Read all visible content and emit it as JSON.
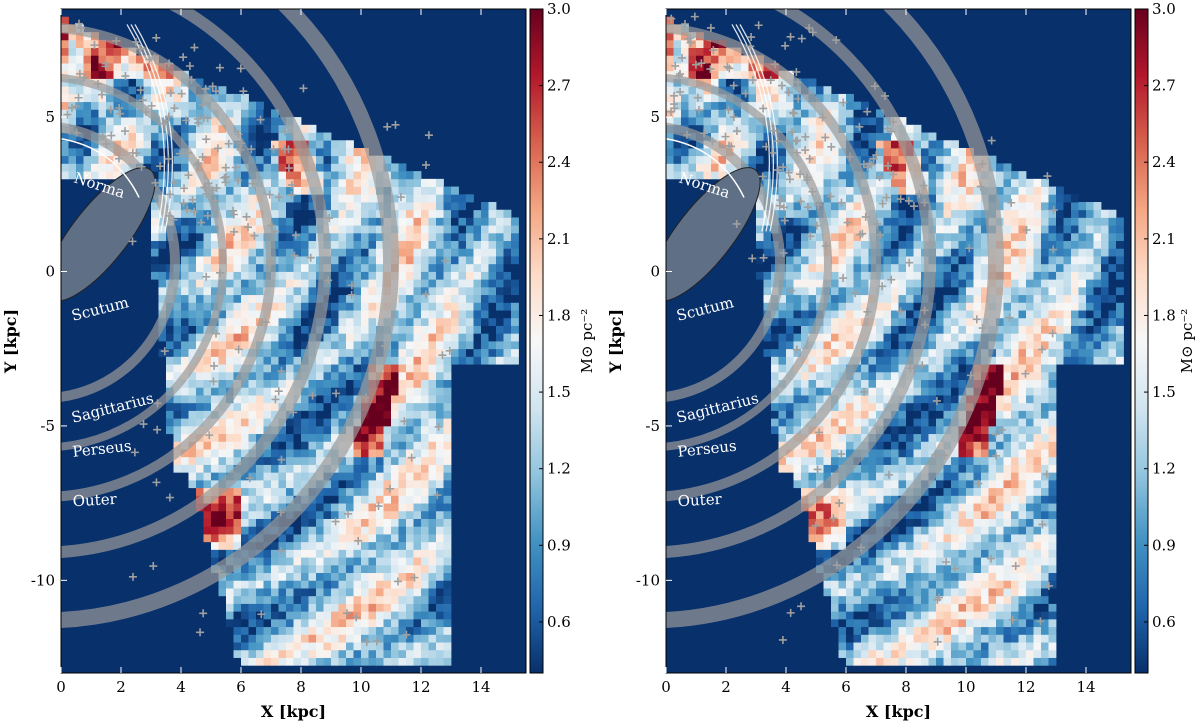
{
  "chart_data": [
    {
      "type": "heatmap",
      "panel": "left",
      "xlabel": "X [kpc]",
      "ylabel": "Y [kpc]",
      "xlim": [
        0,
        15.5
      ],
      "ylim": [
        -13,
        8.5
      ],
      "xticks": [
        "0",
        "2",
        "4",
        "6",
        "8",
        "10",
        "12",
        "14"
      ],
      "yticks": [
        "5",
        "0",
        "-5",
        "-10"
      ],
      "colorbar": {
        "label": "M⊙ pc⁻²",
        "range": [
          0.4,
          3.0
        ],
        "ticks": [
          "3.0",
          "2.7",
          "2.4",
          "2.1",
          "1.8",
          "1.5",
          "1.2",
          "0.9",
          "0.6"
        ]
      },
      "arm_labels": [
        "Norma",
        "Scutum",
        "Sagittarius",
        "Perseus",
        "Outer"
      ],
      "grid": false
    },
    {
      "type": "heatmap",
      "panel": "right",
      "xlabel": "X [kpc]",
      "ylabel": "Y [kpc]",
      "xlim": [
        0,
        15.5
      ],
      "ylim": [
        -13,
        8.5
      ],
      "xticks": [
        "0",
        "2",
        "4",
        "6",
        "8",
        "10",
        "12",
        "14"
      ],
      "yticks": [
        "5",
        "0",
        "-5",
        "-10"
      ],
      "colorbar": {
        "label": "M⊙ pc⁻²",
        "range": [
          0.4,
          3.0
        ],
        "ticks": [
          "3.0",
          "2.7",
          "2.4",
          "2.1",
          "1.8",
          "1.5",
          "1.2",
          "0.9",
          "0.6"
        ]
      },
      "arm_labels": [
        "Norma",
        "Scutum",
        "Sagittarius",
        "Perseus",
        "Outer"
      ],
      "grid": false
    }
  ],
  "colors": {
    "background": "#08306b",
    "colormap": [
      "#08306b",
      "#2166ac",
      "#4393c3",
      "#92c5de",
      "#d1e5f0",
      "#f7f7f7",
      "#fddbc7",
      "#f4a582",
      "#d6604d",
      "#b2182b",
      "#67001f"
    ],
    "arm_band": "#9a9a9a",
    "markers": "#a0a0a0"
  }
}
